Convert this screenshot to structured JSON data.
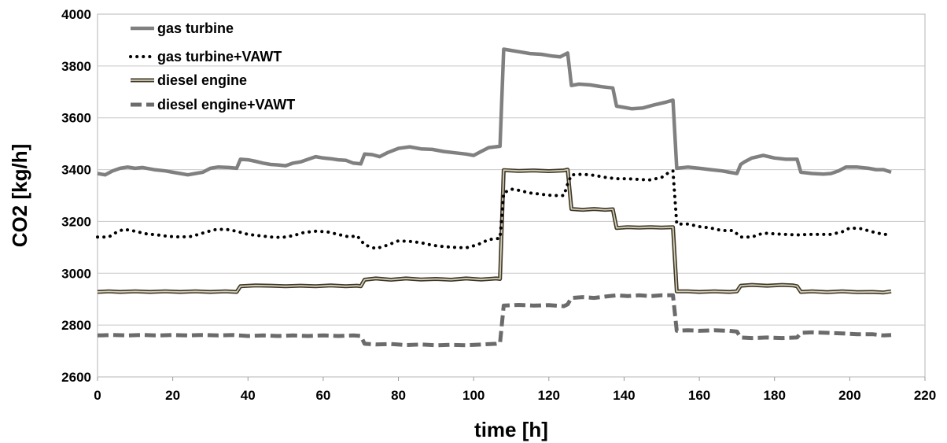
{
  "chart_data": {
    "type": "line",
    "title": "",
    "xlabel": "time [h]",
    "ylabel": "CO2 [kg/h]",
    "xlim": [
      0,
      220
    ],
    "ylim": [
      2600,
      4000
    ],
    "xticks": [
      0,
      20,
      40,
      60,
      80,
      100,
      120,
      140,
      160,
      180,
      200,
      220
    ],
    "yticks": [
      2600,
      2800,
      3000,
      3200,
      3400,
      3600,
      3800,
      4000
    ],
    "grid": "horizontal",
    "legend": "top-left",
    "series": [
      {
        "name": "gas turbine",
        "color": "#808080",
        "style": "solid-thick",
        "points": [
          [
            0,
            3385
          ],
          [
            2,
            3380
          ],
          [
            4,
            3395
          ],
          [
            6,
            3405
          ],
          [
            8,
            3410
          ],
          [
            10,
            3405
          ],
          [
            12,
            3408
          ],
          [
            15,
            3400
          ],
          [
            18,
            3395
          ],
          [
            20,
            3390
          ],
          [
            22,
            3385
          ],
          [
            24,
            3380
          ],
          [
            26,
            3385
          ],
          [
            28,
            3390
          ],
          [
            30,
            3405
          ],
          [
            32,
            3410
          ],
          [
            35,
            3408
          ],
          [
            37,
            3405
          ],
          [
            38,
            3440
          ],
          [
            40,
            3438
          ],
          [
            42,
            3432
          ],
          [
            44,
            3425
          ],
          [
            46,
            3420
          ],
          [
            48,
            3418
          ],
          [
            50,
            3415
          ],
          [
            52,
            3425
          ],
          [
            54,
            3430
          ],
          [
            56,
            3440
          ],
          [
            58,
            3450
          ],
          [
            60,
            3445
          ],
          [
            62,
            3442
          ],
          [
            64,
            3438
          ],
          [
            66,
            3436
          ],
          [
            68,
            3425
          ],
          [
            70,
            3422
          ],
          [
            71,
            3460
          ],
          [
            73,
            3458
          ],
          [
            75,
            3450
          ],
          [
            77,
            3465
          ],
          [
            80,
            3482
          ],
          [
            83,
            3488
          ],
          [
            86,
            3480
          ],
          [
            89,
            3478
          ],
          [
            92,
            3470
          ],
          [
            95,
            3465
          ],
          [
            98,
            3460
          ],
          [
            100,
            3455
          ],
          [
            102,
            3470
          ],
          [
            104,
            3485
          ],
          [
            107,
            3490
          ],
          [
            108,
            3865
          ],
          [
            110,
            3860
          ],
          [
            112,
            3855
          ],
          [
            115,
            3848
          ],
          [
            118,
            3845
          ],
          [
            121,
            3838
          ],
          [
            123,
            3835
          ],
          [
            125,
            3850
          ],
          [
            126,
            3725
          ],
          [
            128,
            3730
          ],
          [
            131,
            3727
          ],
          [
            134,
            3720
          ],
          [
            137,
            3715
          ],
          [
            138,
            3645
          ],
          [
            140,
            3640
          ],
          [
            142,
            3635
          ],
          [
            145,
            3638
          ],
          [
            148,
            3650
          ],
          [
            151,
            3660
          ],
          [
            153,
            3668
          ],
          [
            154,
            3405
          ],
          [
            157,
            3410
          ],
          [
            160,
            3405
          ],
          [
            163,
            3400
          ],
          [
            166,
            3395
          ],
          [
            168,
            3390
          ],
          [
            170,
            3385
          ],
          [
            171,
            3420
          ],
          [
            172,
            3430
          ],
          [
            174,
            3445
          ],
          [
            177,
            3455
          ],
          [
            180,
            3445
          ],
          [
            183,
            3440
          ],
          [
            186,
            3440
          ],
          [
            187,
            3390
          ],
          [
            190,
            3385
          ],
          [
            193,
            3383
          ],
          [
            195,
            3385
          ],
          [
            197,
            3395
          ],
          [
            199,
            3410
          ],
          [
            202,
            3410
          ],
          [
            205,
            3405
          ],
          [
            207,
            3400
          ],
          [
            209,
            3400
          ],
          [
            211,
            3390
          ]
        ]
      },
      {
        "name": "gas turbine+VAWT",
        "color": "#000000",
        "style": "dotted",
        "points": [
          [
            0,
            3140
          ],
          [
            3,
            3140
          ],
          [
            5,
            3158
          ],
          [
            7,
            3170
          ],
          [
            10,
            3162
          ],
          [
            13,
            3152
          ],
          [
            16,
            3148
          ],
          [
            19,
            3142
          ],
          [
            22,
            3140
          ],
          [
            25,
            3142
          ],
          [
            28,
            3155
          ],
          [
            31,
            3168
          ],
          [
            34,
            3170
          ],
          [
            37,
            3162
          ],
          [
            40,
            3150
          ],
          [
            43,
            3145
          ],
          [
            46,
            3140
          ],
          [
            49,
            3138
          ],
          [
            52,
            3145
          ],
          [
            55,
            3158
          ],
          [
            58,
            3162
          ],
          [
            61,
            3160
          ],
          [
            64,
            3150
          ],
          [
            67,
            3140
          ],
          [
            69,
            3145
          ],
          [
            71,
            3110
          ],
          [
            74,
            3095
          ],
          [
            77,
            3108
          ],
          [
            80,
            3125
          ],
          [
            83,
            3123
          ],
          [
            86,
            3118
          ],
          [
            89,
            3108
          ],
          [
            92,
            3103
          ],
          [
            95,
            3100
          ],
          [
            98,
            3098
          ],
          [
            101,
            3110
          ],
          [
            104,
            3130
          ],
          [
            107,
            3135
          ],
          [
            108,
            3310
          ],
          [
            110,
            3325
          ],
          [
            112,
            3320
          ],
          [
            115,
            3310
          ],
          [
            118,
            3305
          ],
          [
            121,
            3300
          ],
          [
            124,
            3300
          ],
          [
            125,
            3345
          ],
          [
            126,
            3380
          ],
          [
            129,
            3382
          ],
          [
            132,
            3378
          ],
          [
            135,
            3370
          ],
          [
            138,
            3365
          ],
          [
            141,
            3365
          ],
          [
            144,
            3362
          ],
          [
            147,
            3360
          ],
          [
            150,
            3370
          ],
          [
            152,
            3390
          ],
          [
            153,
            3395
          ],
          [
            154,
            3190
          ],
          [
            157,
            3190
          ],
          [
            160,
            3180
          ],
          [
            163,
            3175
          ],
          [
            166,
            3165
          ],
          [
            169,
            3165
          ],
          [
            171,
            3140
          ],
          [
            174,
            3140
          ],
          [
            177,
            3155
          ],
          [
            180,
            3152
          ],
          [
            183,
            3150
          ],
          [
            186,
            3148
          ],
          [
            189,
            3150
          ],
          [
            192,
            3150
          ],
          [
            195,
            3150
          ],
          [
            198,
            3160
          ],
          [
            200,
            3175
          ],
          [
            203,
            3172
          ],
          [
            206,
            3160
          ],
          [
            209,
            3150
          ],
          [
            211,
            3150
          ]
        ]
      },
      {
        "name": "diesel engine",
        "color": "#d6cfb7",
        "style": "double",
        "points": [
          [
            0,
            2928
          ],
          [
            3,
            2930
          ],
          [
            6,
            2928
          ],
          [
            10,
            2930
          ],
          [
            14,
            2928
          ],
          [
            18,
            2930
          ],
          [
            22,
            2928
          ],
          [
            26,
            2930
          ],
          [
            30,
            2928
          ],
          [
            34,
            2930
          ],
          [
            37,
            2928
          ],
          [
            38,
            2950
          ],
          [
            42,
            2953
          ],
          [
            46,
            2952
          ],
          [
            50,
            2950
          ],
          [
            54,
            2952
          ],
          [
            58,
            2950
          ],
          [
            62,
            2953
          ],
          [
            66,
            2950
          ],
          [
            69,
            2952
          ],
          [
            70,
            2950
          ],
          [
            71,
            2975
          ],
          [
            74,
            2980
          ],
          [
            78,
            2975
          ],
          [
            82,
            2980
          ],
          [
            86,
            2976
          ],
          [
            90,
            2978
          ],
          [
            94,
            2975
          ],
          [
            98,
            2980
          ],
          [
            102,
            2976
          ],
          [
            106,
            2980
          ],
          [
            107,
            2978
          ],
          [
            108,
            3398
          ],
          [
            112,
            3395
          ],
          [
            116,
            3397
          ],
          [
            120,
            3394
          ],
          [
            124,
            3397
          ],
          [
            125,
            3400
          ],
          [
            126,
            3248
          ],
          [
            129,
            3245
          ],
          [
            132,
            3248
          ],
          [
            135,
            3245
          ],
          [
            137,
            3247
          ],
          [
            138,
            3175
          ],
          [
            141,
            3178
          ],
          [
            144,
            3176
          ],
          [
            147,
            3178
          ],
          [
            150,
            3176
          ],
          [
            153,
            3178
          ],
          [
            154,
            2930
          ],
          [
            157,
            2930
          ],
          [
            160,
            2928
          ],
          [
            164,
            2930
          ],
          [
            168,
            2928
          ],
          [
            170,
            2930
          ],
          [
            171,
            2952
          ],
          [
            174,
            2955
          ],
          [
            178,
            2952
          ],
          [
            182,
            2955
          ],
          [
            185,
            2953
          ],
          [
            186,
            2950
          ],
          [
            187,
            2928
          ],
          [
            190,
            2930
          ],
          [
            194,
            2927
          ],
          [
            198,
            2930
          ],
          [
            202,
            2927
          ],
          [
            206,
            2928
          ],
          [
            209,
            2926
          ],
          [
            211,
            2930
          ]
        ]
      },
      {
        "name": "diesel engine+VAWT",
        "color": "#6b6b6b",
        "style": "dashed-thick",
        "points": [
          [
            0,
            2760
          ],
          [
            4,
            2762
          ],
          [
            8,
            2760
          ],
          [
            12,
            2762
          ],
          [
            16,
            2760
          ],
          [
            20,
            2762
          ],
          [
            24,
            2760
          ],
          [
            28,
            2762
          ],
          [
            32,
            2760
          ],
          [
            36,
            2762
          ],
          [
            40,
            2758
          ],
          [
            44,
            2760
          ],
          [
            48,
            2758
          ],
          [
            52,
            2760
          ],
          [
            56,
            2758
          ],
          [
            60,
            2760
          ],
          [
            64,
            2758
          ],
          [
            68,
            2760
          ],
          [
            70,
            2758
          ],
          [
            71,
            2728
          ],
          [
            74,
            2725
          ],
          [
            78,
            2727
          ],
          [
            82,
            2723
          ],
          [
            86,
            2725
          ],
          [
            90,
            2722
          ],
          [
            94,
            2724
          ],
          [
            98,
            2722
          ],
          [
            102,
            2725
          ],
          [
            106,
            2728
          ],
          [
            107,
            2730
          ],
          [
            108,
            2875
          ],
          [
            112,
            2878
          ],
          [
            116,
            2875
          ],
          [
            120,
            2877
          ],
          [
            124,
            2873
          ],
          [
            125,
            2880
          ],
          [
            126,
            2905
          ],
          [
            129,
            2908
          ],
          [
            132,
            2905
          ],
          [
            135,
            2910
          ],
          [
            138,
            2915
          ],
          [
            141,
            2912
          ],
          [
            144,
            2915
          ],
          [
            147,
            2912
          ],
          [
            150,
            2915
          ],
          [
            153,
            2915
          ],
          [
            154,
            2778
          ],
          [
            157,
            2780
          ],
          [
            160,
            2778
          ],
          [
            164,
            2780
          ],
          [
            168,
            2778
          ],
          [
            170,
            2775
          ],
          [
            171,
            2752
          ],
          [
            174,
            2750
          ],
          [
            178,
            2752
          ],
          [
            182,
            2750
          ],
          [
            186,
            2752
          ],
          [
            187,
            2770
          ],
          [
            190,
            2772
          ],
          [
            194,
            2770
          ],
          [
            198,
            2768
          ],
          [
            202,
            2765
          ],
          [
            206,
            2765
          ],
          [
            209,
            2760
          ],
          [
            211,
            2762
          ]
        ]
      }
    ]
  }
}
